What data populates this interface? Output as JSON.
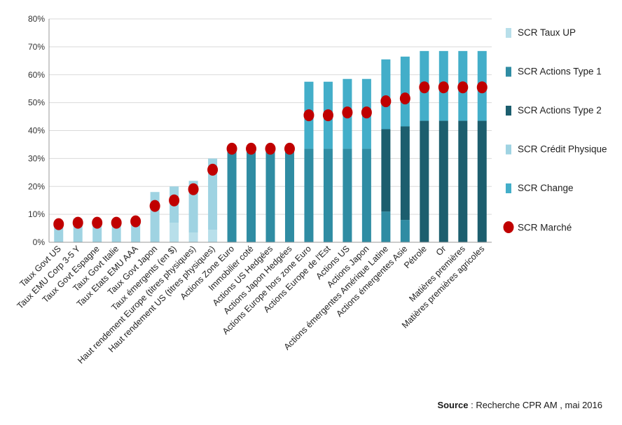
{
  "chart_data": {
    "type": "bar",
    "stacked": true,
    "ylim": [
      0,
      80
    ],
    "yticks": [
      "0%",
      "10%",
      "20%",
      "30%",
      "40%",
      "50%",
      "60%",
      "70%",
      "80%"
    ],
    "grid": true,
    "legend_position": "right",
    "categories": [
      "Taux Govt US",
      "Taux EMU Corp 3-5 Y",
      "Taux Govt Espagne",
      "Taux Govt Italie",
      "Taux Etats EMU AAA",
      "Taux Govt Japon",
      "Taux émergents (en $)",
      "Haut rendement Europe (titres physiques)",
      "Haut rendement US (titres physiques)",
      "Actions Zone Euro",
      "Immobilier coté",
      "Actions US Hedgées",
      "Actions Japon Hedgées",
      "Actions Europe hors zone Euro",
      "Actions Europe de l'Est",
      "Actions US",
      "Actions Japon",
      "Actions émergentes Amérique Latine",
      "Actions émergentes Asie",
      "Pétrole",
      "Or",
      "Matières premières",
      "Matières premières agricoles"
    ],
    "series": [
      {
        "name": "SCR Taux UP",
        "color": "#b8dfea",
        "values": [
          0,
          0,
          0,
          0,
          0,
          0,
          7,
          3.5,
          4.5,
          0,
          0,
          0,
          0,
          0,
          0,
          0,
          0,
          0,
          0,
          0,
          0,
          0,
          0
        ]
      },
      {
        "name": "SCR Actions Type 1",
        "color": "#2f8ca3",
        "values": [
          0,
          0,
          0,
          0,
          0,
          0,
          0,
          0,
          0,
          33,
          33,
          33,
          33,
          33.5,
          33.5,
          33.5,
          33.5,
          11,
          8,
          0,
          0,
          0,
          0
        ]
      },
      {
        "name": "SCR Actions Type 2",
        "color": "#1c5e6e",
        "values": [
          0,
          0,
          0,
          0,
          0,
          0,
          0,
          0,
          0,
          0,
          0,
          0,
          0,
          0,
          0,
          0,
          0,
          29.5,
          33.5,
          43.5,
          43.5,
          43.5,
          43.5
        ]
      },
      {
        "name": "SCR Crédit Physique",
        "color": "#9fd3e2",
        "values": [
          7,
          8.5,
          6.5,
          6,
          7.5,
          18,
          13,
          18.5,
          25.5,
          0,
          0,
          0,
          0,
          0,
          0,
          0,
          0,
          0,
          0,
          0,
          0,
          0,
          0
        ]
      },
      {
        "name": "SCR Change",
        "color": "#43aec9",
        "values": [
          0,
          0,
          0,
          0,
          0,
          0,
          0,
          0,
          0,
          0,
          0,
          0,
          0,
          24,
          24,
          25,
          25,
          25,
          25,
          25,
          25,
          25,
          25
        ]
      }
    ],
    "markers": {
      "name": "SCR Marché",
      "color": "#c00000",
      "values": [
        6.5,
        7,
        7,
        7,
        7.5,
        13,
        15,
        19,
        26,
        33.5,
        33.5,
        33.5,
        33.5,
        45.5,
        45.5,
        46.5,
        46.5,
        50.5,
        51.5,
        55.5,
        55.5,
        55.5,
        55.5
      ]
    }
  },
  "source": {
    "label": "Source",
    "text": " : Recherche CPR AM , mai 2016"
  }
}
